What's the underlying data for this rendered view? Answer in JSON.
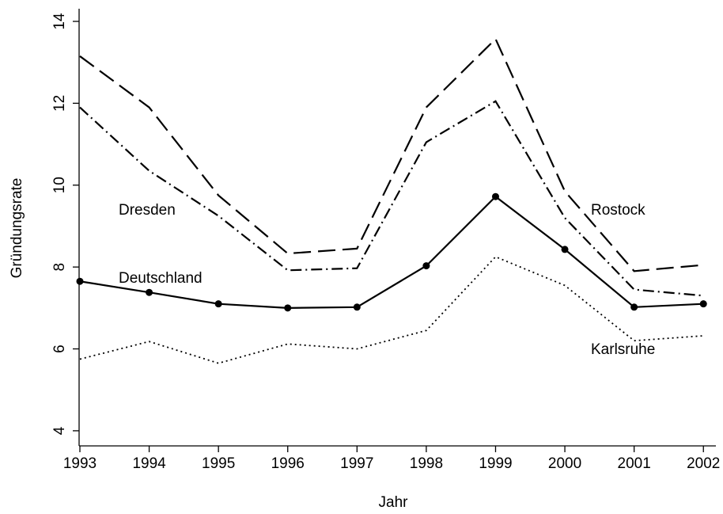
{
  "chart_data": {
    "type": "line",
    "x_label": "Jahr",
    "y_label": "Gründungsrate",
    "x": [
      1993,
      1994,
      1995,
      1996,
      1997,
      1998,
      1999,
      2000,
      2001,
      2002
    ],
    "xlim": [
      1993,
      2002.18
    ],
    "xticks": [
      1993,
      1994,
      1995,
      1996,
      1997,
      1998,
      1999,
      2000,
      2001,
      2002
    ],
    "ylim": [
      3.65,
      14.3
    ],
    "yticks": [
      4,
      6,
      8,
      10,
      12,
      14
    ],
    "series": [
      {
        "name": "Rostock",
        "color": "#000000",
        "linestyle": "dashed",
        "values": [
          13.15,
          11.9,
          9.75,
          8.33,
          8.45,
          11.9,
          13.57,
          9.85,
          7.9,
          8.05
        ]
      },
      {
        "name": "Dresden",
        "color": "#000000",
        "linestyle": "dashdot",
        "values": [
          11.9,
          10.35,
          9.25,
          7.92,
          7.97,
          11.05,
          12.05,
          9.2,
          7.45,
          7.3
        ]
      },
      {
        "name": "Deutschland",
        "color": "#000000",
        "linestyle": "solid",
        "marker": "circle",
        "values": [
          7.65,
          7.38,
          7.1,
          7.0,
          7.02,
          8.03,
          9.72,
          8.43,
          7.02,
          7.1
        ]
      },
      {
        "name": "Karlsruhe",
        "color": "#000000",
        "linestyle": "dotted",
        "values": [
          5.75,
          6.18,
          5.65,
          6.12,
          6.0,
          6.45,
          8.25,
          7.55,
          6.2,
          6.32
        ]
      }
    ]
  }
}
